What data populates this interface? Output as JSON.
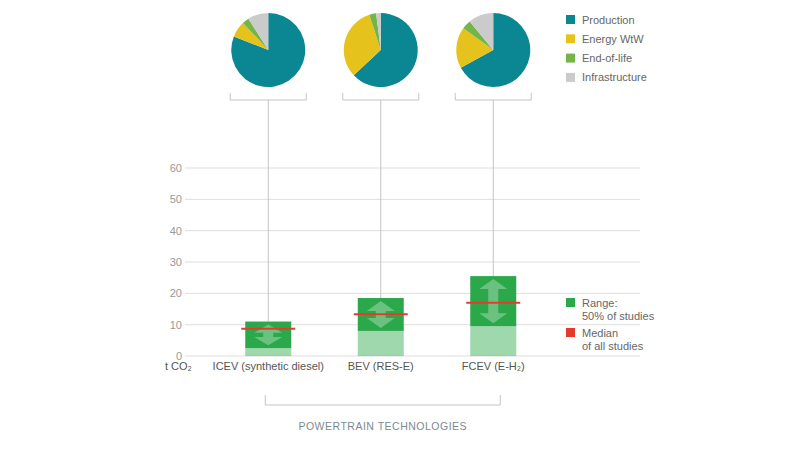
{
  "chart_data": [
    {
      "type": "pie",
      "categories": [
        "Production",
        "Energy WtW",
        "End-of-life",
        "Infrastructure"
      ],
      "colors": [
        "#0a8793",
        "#e6c21c",
        "#74b54a",
        "#cbcbcb"
      ],
      "series": [
        {
          "values": [
            81,
            7,
            3,
            9
          ]
        },
        {
          "values": [
            63,
            32,
            3,
            2
          ]
        },
        {
          "values": [
            67,
            18,
            4,
            11
          ]
        }
      ],
      "legend": "right"
    },
    {
      "type": "range",
      "x_label": "POWERTRAIN TECHNOLOGIES",
      "y_label": "t CO₂",
      "categories": [
        "ICEV (synthetic diesel)",
        "BEV (RES-E)",
        "FCEV (E-H₂)"
      ],
      "ylim": [
        0,
        60
      ],
      "yticks": [
        0,
        10,
        20,
        30,
        40,
        50,
        60
      ],
      "grid": true,
      "legend": "right",
      "series": [
        {
          "name": "Range: 50% of studies",
          "color": "#2ba84a",
          "low": [
            2.5,
            8,
            9.5
          ],
          "high": [
            11,
            18.5,
            25.5
          ]
        },
        {
          "name": "Median of all studies",
          "color": "#e63b2c",
          "values": [
            8.7,
            13.3,
            17
          ]
        }
      ]
    }
  ]
}
